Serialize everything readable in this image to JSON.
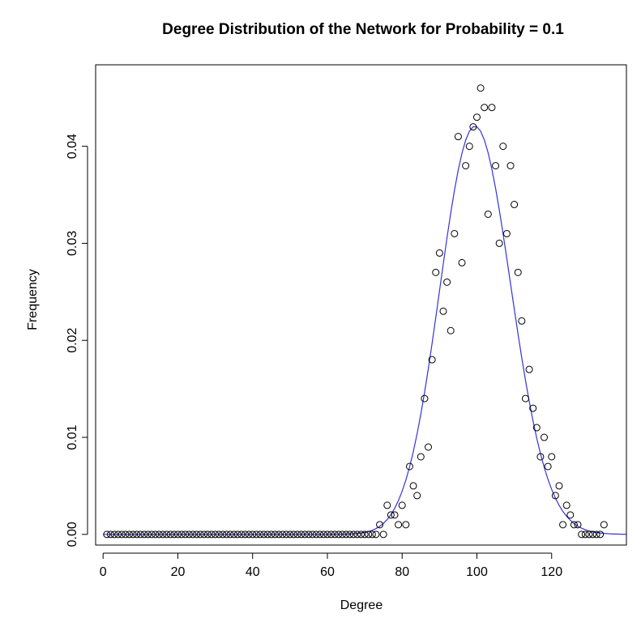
{
  "chart_data": {
    "type": "scatter",
    "title": "Degree Distribution of the Network for Probability =  0.1",
    "xlabel": "Degree",
    "ylabel": "Frequency",
    "xlim": [
      -2,
      140
    ],
    "ylim": [
      -0.0011,
      0.0484
    ],
    "x_ticks": [
      0,
      20,
      40,
      60,
      80,
      100,
      120
    ],
    "x_tick_labels": [
      "0",
      "20",
      "40",
      "60",
      "80",
      "100",
      "120"
    ],
    "y_ticks": [
      0,
      0.01,
      0.02,
      0.03,
      0.04
    ],
    "y_tick_labels": [
      "0.00",
      "0.01",
      "0.02",
      "0.03",
      "0.04"
    ],
    "grid": false,
    "series": [
      {
        "kind": "points",
        "marker": "open-circle",
        "color": "#000000",
        "x": [
          1,
          2,
          3,
          4,
          5,
          6,
          7,
          8,
          9,
          10,
          11,
          12,
          13,
          14,
          15,
          16,
          17,
          18,
          19,
          20,
          21,
          22,
          23,
          24,
          25,
          26,
          27,
          28,
          29,
          30,
          31,
          32,
          33,
          34,
          35,
          36,
          37,
          38,
          39,
          40,
          41,
          42,
          43,
          44,
          45,
          46,
          47,
          48,
          49,
          50,
          51,
          52,
          53,
          54,
          55,
          56,
          57,
          58,
          59,
          60,
          61,
          62,
          63,
          64,
          65,
          66,
          67,
          68,
          69,
          70,
          71,
          72,
          73,
          74,
          75,
          76,
          77,
          78,
          79,
          80,
          81,
          82,
          83,
          84,
          85,
          86,
          87,
          88,
          89,
          90,
          91,
          92,
          93,
          94,
          95,
          96,
          97,
          98,
          99,
          100,
          101,
          102,
          103,
          104,
          105,
          106,
          107,
          108,
          109,
          110,
          111,
          112,
          113,
          114,
          115,
          116,
          117,
          118,
          119,
          120,
          121,
          122,
          123,
          124,
          125,
          126,
          127,
          128,
          129,
          130,
          131,
          132,
          133,
          134
        ],
        "y": [
          0,
          0,
          0,
          0,
          0,
          0,
          0,
          0,
          0,
          0,
          0,
          0,
          0,
          0,
          0,
          0,
          0,
          0,
          0,
          0,
          0,
          0,
          0,
          0,
          0,
          0,
          0,
          0,
          0,
          0,
          0,
          0,
          0,
          0,
          0,
          0,
          0,
          0,
          0,
          0,
          0,
          0,
          0,
          0,
          0,
          0,
          0,
          0,
          0,
          0,
          0,
          0,
          0,
          0,
          0,
          0,
          0,
          0,
          0,
          0,
          0,
          0,
          0,
          0,
          0,
          0,
          0,
          0,
          0,
          0,
          0,
          0,
          0,
          0.001,
          0,
          0.003,
          0.002,
          0.002,
          0.001,
          0.003,
          0.001,
          0.007,
          0.005,
          0.004,
          0.008,
          0.014,
          0.009,
          0.018,
          0.027,
          0.029,
          0.023,
          0.026,
          0.021,
          0.031,
          0.041,
          0.028,
          0.038,
          0.04,
          0.042,
          0.043,
          0.046,
          0.044,
          0.033,
          0.044,
          0.038,
          0.03,
          0.04,
          0.031,
          0.038,
          0.034,
          0.027,
          0.022,
          0.014,
          0.017,
          0.013,
          0.011,
          0.008,
          0.01,
          0.007,
          0.008,
          0.004,
          0.005,
          0.001,
          0.003,
          0.002,
          0.001,
          0.001,
          0,
          0,
          0,
          0,
          0,
          0,
          0.001
        ]
      },
      {
        "kind": "curve",
        "color": "#3333dd",
        "distribution": "binomial",
        "n": 999,
        "p": 0.1,
        "x_range": [
          0,
          140
        ]
      }
    ]
  }
}
